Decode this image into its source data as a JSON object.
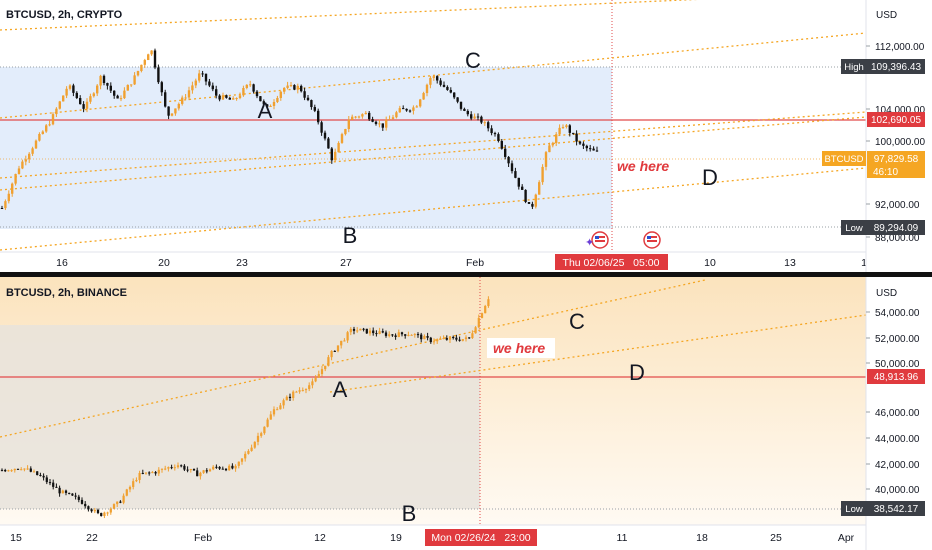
{
  "colors": {
    "bull": "#f0a030",
    "bear": "#111111",
    "channel": "#f5a623",
    "hline": "#e24b4b",
    "top_zone": "#e3edfb",
    "bottom_zone": "#e7e3dc",
    "bottom_bg": "#fdf1de",
    "badge_red": "#e03a3e",
    "badge_orange": "#f5a623",
    "badge_dark": "#3b3f46"
  },
  "chart_data": [
    {
      "type": "candlestick",
      "title": "BTCUSD, 2h, CRYPTO",
      "currency": "USD",
      "x_ticks": [
        "16",
        "20",
        "23",
        "27",
        "Feb",
        "10",
        "13",
        "1"
      ],
      "y_ticks": [
        "112,000.00",
        "104,000.00",
        "100,000.00",
        "92,000.00",
        "88,000.00"
      ],
      "ylim": [
        87000,
        114500
      ],
      "series": [
        {
          "name": "BTCUSD",
          "values": [
            91800,
            96200,
            98900,
            101500,
            105200,
            102600,
            106200,
            103500,
            106000,
            109300,
            101800,
            103800,
            106500,
            104000,
            103500,
            105400,
            102500,
            104900,
            105000,
            101900,
            97000,
            101600,
            102100,
            100700,
            102400,
            102800,
            106300,
            104600,
            102200,
            101300,
            99500,
            95400,
            91500,
            98200,
            101000,
            98600,
            97800
          ]
        }
      ],
      "price_labels": {
        "high": {
          "label": "High",
          "value": "109,396.43"
        },
        "current": {
          "symbol": "BTCUSD",
          "value": "97,829.58",
          "countdown": "46:10"
        },
        "line": {
          "value": "102,690.05"
        },
        "low": {
          "label": "Low",
          "value": "89,294.09"
        }
      },
      "cursor_date": "Thu 02/06/25   05:00",
      "wave_labels": [
        "C",
        "A",
        "B",
        "D"
      ],
      "annotation": "we here"
    },
    {
      "type": "candlestick",
      "title": "BTCUSD, 2h, BINANCE",
      "currency": "USD",
      "x_ticks": [
        "15",
        "22",
        "Feb",
        "12",
        "19",
        "11",
        "18",
        "25",
        "Apr"
      ],
      "y_ticks": [
        "54,000.00",
        "52,000.00",
        "50,000.00",
        "46,000.00",
        "44,000.00",
        "42,000.00",
        "40,000.00"
      ],
      "ylim": [
        38400,
        56400
      ],
      "series": [
        {
          "name": "BTCUSD",
          "values": [
            42400,
            42600,
            41900,
            40800,
            40200,
            39100,
            40000,
            42000,
            42300,
            42800,
            42100,
            42600,
            42500,
            44500,
            46800,
            48000,
            48700,
            51000,
            52600,
            52400,
            52200,
            52300,
            51800,
            51900,
            51900,
            54900
          ]
        }
      ],
      "price_labels": {
        "line": {
          "value": "48,913.96"
        },
        "low": {
          "label": "Low",
          "value": "38,542.17"
        }
      },
      "cursor_date": "Mon 02/26/24   23:00",
      "wave_labels": [
        "C",
        "A",
        "D",
        "B"
      ],
      "annotation": "we here"
    }
  ]
}
